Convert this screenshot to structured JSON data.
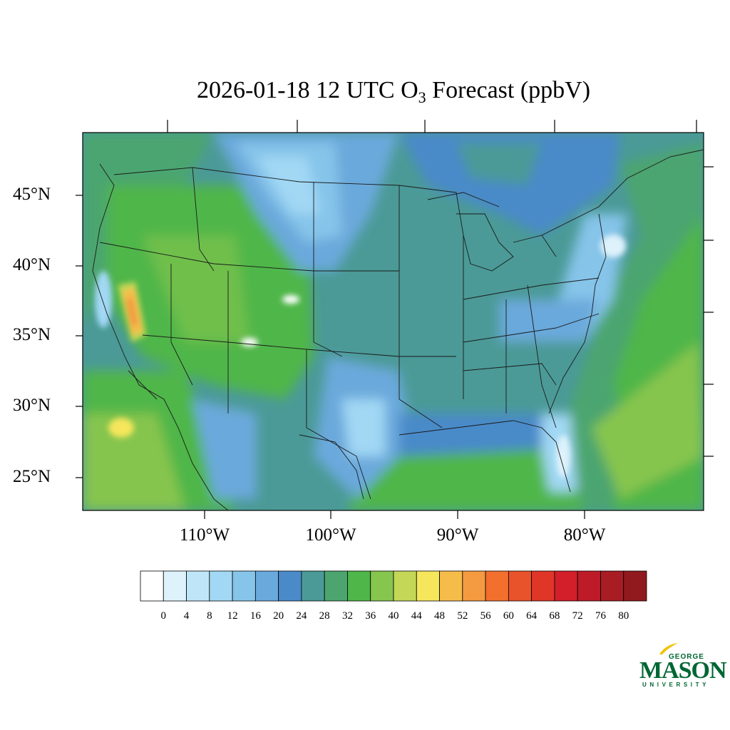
{
  "title": {
    "date_time": "2026-01-18 12 UTC O",
    "subscript": "3",
    "suffix": " Forecast (ppbV)"
  },
  "lat_labels": [
    "45°N",
    "40°N",
    "35°N",
    "30°N",
    "25°N"
  ],
  "lon_labels": [
    "110°W",
    "100°W",
    "90°W",
    "80°W"
  ],
  "colorbar": {
    "ticks": [
      "0",
      "4",
      "8",
      "12",
      "16",
      "20",
      "24",
      "28",
      "32",
      "36",
      "40",
      "44",
      "48",
      "52",
      "56",
      "60",
      "64",
      "68",
      "72",
      "76",
      "80"
    ],
    "colors": [
      "#ffffff",
      "#def2fb",
      "#bfe6f8",
      "#a2d8f4",
      "#86c4ea",
      "#6aa9dc",
      "#4a8ac9",
      "#4b9a97",
      "#4ca56f",
      "#4fb64a",
      "#86c54e",
      "#c4d756",
      "#f5e65c",
      "#f6bc4a",
      "#f49a40",
      "#f26f2e",
      "#e9532b",
      "#e03628",
      "#d21f2a",
      "#be1b28",
      "#a81c24",
      "#901a1e"
    ]
  },
  "logo": {
    "line1": "GEORGE",
    "line2": "MASON",
    "line3": "UNIVERSITY",
    "color": "#006633",
    "accent": "#f2c200"
  }
}
